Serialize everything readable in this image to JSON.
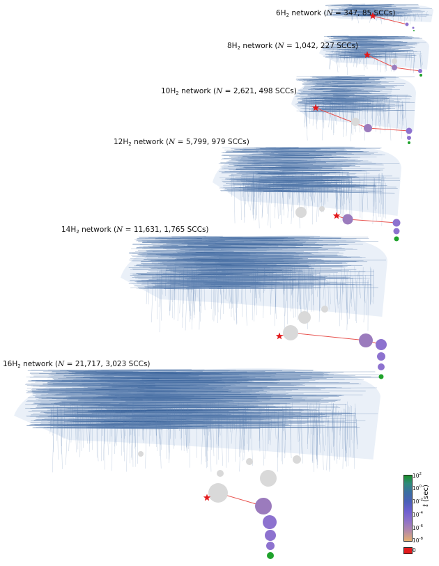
{
  "networks": [
    {
      "id": "6H2",
      "formula_prefix": "6H",
      "formula_sub": "2",
      "label_rest": " network (",
      "n_var": "N",
      "n_text": " = 347, 85 SCCs)"
    },
    {
      "id": "8H2",
      "formula_prefix": "8H",
      "formula_sub": "2",
      "label_rest": " network (",
      "n_var": "N",
      "n_text": " = 1,042, 227 SCCs)"
    },
    {
      "id": "10H2",
      "formula_prefix": "10H",
      "formula_sub": "2",
      "label_rest": " network (",
      "n_var": "N",
      "n_text": " = 2,621, 498 SCCs)"
    },
    {
      "id": "12H2",
      "formula_prefix": "12H",
      "formula_sub": "2",
      "label_rest": " network (",
      "n_var": "N",
      "n_text": " = 5,799, 979 SCCs)"
    },
    {
      "id": "14H2",
      "formula_prefix": "14H",
      "formula_sub": "2",
      "label_rest": " network (",
      "n_var": "N",
      "n_text": " = 11,631, 1,765 SCCs)"
    },
    {
      "id": "16H2",
      "formula_prefix": "16H",
      "formula_sub": "2",
      "label_rest": " network (",
      "n_var": "N",
      "n_text": " = 21,717, 3,023 SCCs)"
    }
  ],
  "colorbar": {
    "label_var": "t",
    "label_unit": " (sec)",
    "ticks": [
      {
        "base": "10",
        "exp": "2"
      },
      {
        "base": "10",
        "exp": "0"
      },
      {
        "base": "10",
        "exp": "-2"
      },
      {
        "base": "10",
        "exp": "-4"
      },
      {
        "base": "10",
        "exp": "-6"
      },
      {
        "base": "10",
        "exp": "-8"
      }
    ],
    "zero_label": "0",
    "colors": {
      "zero": "#e31a1c",
      "high": "#1a8f2a",
      "mid": "#6f5fd0",
      "low": "#e6b070"
    }
  },
  "colors": {
    "edge": "#5b7fb0",
    "edge_dark": "#2f5a94",
    "scc_gray": "#d9d9d9",
    "path": "#e8534f",
    "star": "#e31a1c",
    "node_purple": "#8d72cf",
    "node_mauve": "#9b7bbd",
    "node_green": "#1fa22b"
  }
}
